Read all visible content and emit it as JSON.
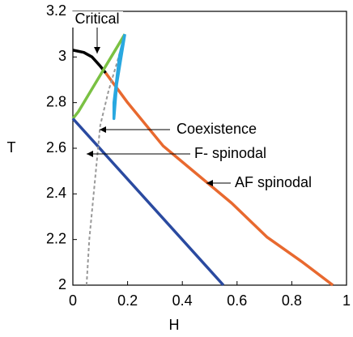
{
  "chart_data": {
    "type": "line",
    "xlabel": "H",
    "ylabel": "T",
    "xlim": [
      0,
      1
    ],
    "ylim": [
      2,
      3.2
    ],
    "xticks": [
      0,
      0.2,
      0.4,
      0.6,
      0.8,
      1
    ],
    "yticks": [
      2,
      2.2,
      2.4,
      2.6,
      2.8,
      3,
      3.2
    ],
    "series": [
      {
        "color": "#000000",
        "x": [
          0,
          0.04,
          0.07,
          0.1,
          0.12
        ],
        "values": [
          3.03,
          3.02,
          3.0,
          2.96,
          2.93
        ]
      },
      {
        "color": "#7ac143",
        "x": [
          0,
          0.02,
          0.06,
          0.1,
          0.14,
          0.19
        ],
        "values": [
          2.73,
          2.76,
          2.84,
          2.92,
          3.0,
          3.1
        ]
      },
      {
        "color": "#e8692f",
        "x": [
          0.12,
          0.2,
          0.33,
          0.45,
          0.58,
          0.71,
          0.84,
          0.95
        ],
        "values": [
          2.93,
          2.8,
          2.61,
          2.49,
          2.36,
          2.21,
          2.1,
          2.0
        ]
      },
      {
        "color": "#2a4aa0",
        "x": [
          0,
          0.55
        ],
        "values": [
          2.73,
          2.0
        ]
      },
      {
        "color": "#999999",
        "dash": true,
        "x": [
          0.05,
          0.06,
          0.08,
          0.1,
          0.13,
          0.16,
          0.19
        ],
        "values": [
          2.0,
          2.2,
          2.45,
          2.7,
          2.85,
          2.97,
          3.1
        ]
      },
      {
        "color": "#29a8e0",
        "x": [
          0.19,
          0.17,
          0.16,
          0.15,
          0.15,
          0.16,
          0.19
        ],
        "values": [
          3.1,
          3.0,
          2.9,
          2.8,
          2.73,
          2.88,
          3.1
        ]
      }
    ],
    "annotations": [
      {
        "text": "Critical",
        "color": "#000000"
      },
      {
        "text": "Coexistence",
        "color": "#999999"
      },
      {
        "text": "F- spinodal",
        "color": "#2a4aa0"
      },
      {
        "text": "AF spinodal",
        "color": "#e8692f"
      }
    ]
  }
}
